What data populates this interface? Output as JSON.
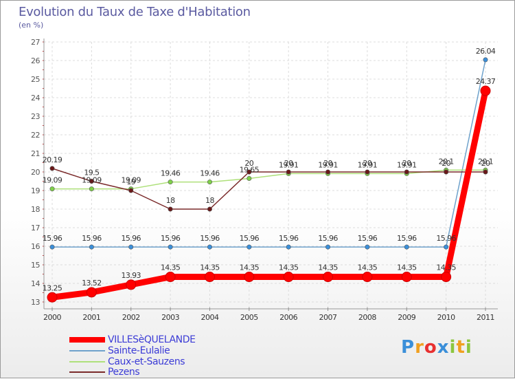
{
  "title": "Evolution du Taux de Taxe d'Habitation",
  "unit": "(en %)",
  "logo": {
    "text": "Proxiti",
    "letters": [
      {
        "char": "P",
        "color": "#3b8fd9"
      },
      {
        "char": "r",
        "color": "#f0a020"
      },
      {
        "char": "o",
        "color": "#e83030"
      },
      {
        "char": "x",
        "color": "#3b8fd9"
      },
      {
        "char": "i",
        "color": "#8cc63f"
      },
      {
        "char": "t",
        "color": "#f0a020"
      },
      {
        "char": "i",
        "color": "#8cc63f"
      }
    ]
  },
  "chart_data": {
    "type": "line",
    "title": "Evolution du Taux de Taxe d'Habitation",
    "ylabel": "(en %)",
    "xlabel": "",
    "ylim": [
      13,
      27
    ],
    "yticks": [
      13,
      14,
      15,
      16,
      17,
      18,
      19,
      20,
      21,
      22,
      23,
      24,
      25,
      26,
      27
    ],
    "x": [
      "2000",
      "2001",
      "2002",
      "2003",
      "2004",
      "2005",
      "2006",
      "2007",
      "2008",
      "2009",
      "2010",
      "2011"
    ],
    "grid": true,
    "legend_position": "bottom-left",
    "series": [
      {
        "name": "VILLESèQUELANDE",
        "color": "#ff0000",
        "marker_color": "#ff0000",
        "values": [
          13.25,
          13.52,
          13.93,
          14.35,
          14.35,
          14.35,
          14.35,
          14.35,
          14.35,
          14.35,
          14.35,
          24.37
        ],
        "labels": [
          "13.25",
          "13.52",
          "13.93",
          "14.35",
          "14.35",
          "14.35",
          "14.35",
          "14.35",
          "14.35",
          "14.35",
          "14.35",
          "24.37"
        ]
      },
      {
        "name": "Sainte-Eulalie",
        "color": "#6fa2cc",
        "marker_color": "#3b8fd9",
        "values": [
          15.96,
          15.96,
          15.96,
          15.96,
          15.96,
          15.96,
          15.96,
          15.96,
          15.96,
          15.96,
          15.96,
          26.04
        ],
        "labels": [
          "15.96",
          "15.96",
          "15.96",
          "15.96",
          "15.96",
          "15.96",
          "15.96",
          "15.96",
          "15.96",
          "15.96",
          "15.96",
          "26.04"
        ]
      },
      {
        "name": "Caux-et-Sauzens",
        "color": "#aee07a",
        "marker_color": "#7fd04a",
        "values": [
          19.09,
          19.09,
          19.09,
          19.46,
          19.46,
          19.65,
          19.91,
          19.91,
          19.91,
          19.91,
          20.1,
          20.1
        ],
        "labels": [
          "19.09",
          "19.09",
          "19.09",
          "19.46",
          "19.46",
          "19.65",
          "19.91",
          "19.91",
          "19.91",
          "19.91",
          "20.1",
          "20.1"
        ]
      },
      {
        "name": "Pezens",
        "color": "#7a2a2a",
        "marker_color": "#6a1818",
        "values": [
          20.19,
          19.5,
          19.0,
          18.0,
          18.0,
          20.0,
          20.0,
          20.0,
          20.0,
          20.0,
          20.0,
          20.0
        ],
        "labels": [
          "20.19",
          "19.5",
          "19",
          "18",
          "18",
          "20",
          "20",
          "20",
          "20",
          "20",
          "20",
          "20"
        ]
      }
    ]
  }
}
